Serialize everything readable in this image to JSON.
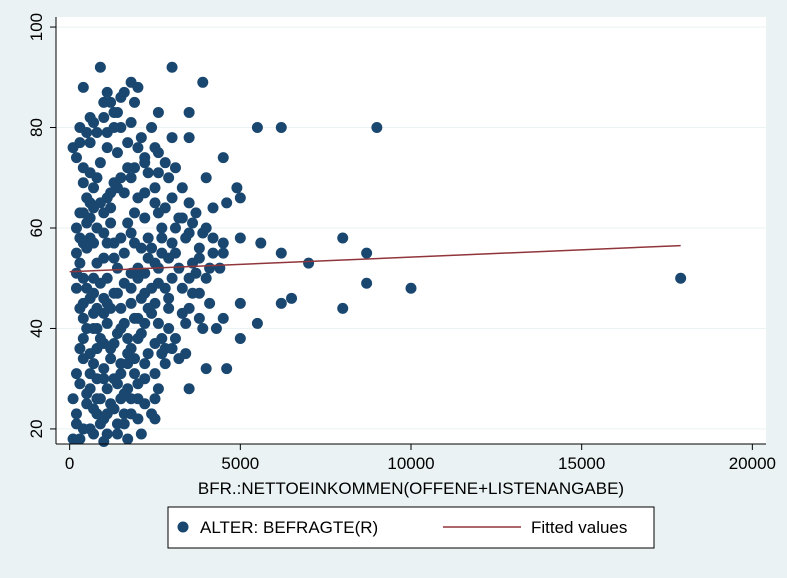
{
  "chart_data": {
    "type": "scatter",
    "xlabel": "BFR.:NETTOEINKOMMEN(OFFENE+LISTENANGABE)",
    "ylabel": "",
    "title": "",
    "xlim": [
      -400,
      20400
    ],
    "ylim": [
      17,
      102
    ],
    "x_ticks": [
      0,
      5000,
      10000,
      15000,
      20000
    ],
    "x_tick_labels": [
      "0",
      "5000",
      "10000",
      "15000",
      "20000"
    ],
    "y_ticks": [
      20,
      40,
      60,
      80,
      100
    ],
    "y_tick_labels": [
      "20",
      "40",
      "60",
      "80",
      "100"
    ],
    "grid": "horizontal",
    "legend_position": "bottom",
    "colors": {
      "background": "#eaf2f3",
      "plot_area": "#ffffff",
      "marker": "#1a476f",
      "fit_line": "#90353b",
      "grid": "#eaf2f3"
    },
    "series": [
      {
        "name": "ALTER: BEFRAGTE(R)",
        "kind": "scatter",
        "points": [
          [
            900,
            92
          ],
          [
            3000,
            92
          ],
          [
            1800,
            89
          ],
          [
            2000,
            88
          ],
          [
            1600,
            87
          ],
          [
            3900,
            89
          ],
          [
            400,
            88
          ],
          [
            1100,
            87
          ],
          [
            1200,
            85
          ],
          [
            600,
            82
          ],
          [
            1000,
            82
          ],
          [
            1300,
            83
          ],
          [
            3500,
            83
          ],
          [
            2600,
            83
          ],
          [
            5500,
            80
          ],
          [
            6200,
            80
          ],
          [
            9000,
            80
          ],
          [
            1500,
            80
          ],
          [
            300,
            80
          ],
          [
            800,
            79
          ],
          [
            3000,
            78
          ],
          [
            3500,
            78
          ],
          [
            1700,
            77
          ],
          [
            2500,
            76
          ],
          [
            100,
            76
          ],
          [
            2600,
            75
          ],
          [
            4500,
            74
          ],
          [
            2200,
            73
          ],
          [
            2800,
            73
          ],
          [
            3100,
            72
          ],
          [
            1900,
            72
          ],
          [
            600,
            71
          ],
          [
            4000,
            70
          ],
          [
            2900,
            70
          ],
          [
            400,
            69
          ],
          [
            3300,
            68
          ],
          [
            4900,
            68
          ],
          [
            1200,
            67
          ],
          [
            5000,
            66
          ],
          [
            3500,
            65
          ],
          [
            4600,
            65
          ],
          [
            4200,
            64
          ],
          [
            2800,
            64
          ],
          [
            2600,
            63
          ],
          [
            3300,
            62
          ],
          [
            600,
            62
          ],
          [
            4000,
            60
          ],
          [
            3500,
            59
          ],
          [
            5000,
            58
          ],
          [
            8000,
            58
          ],
          [
            3000,
            57
          ],
          [
            4500,
            57
          ],
          [
            5600,
            57
          ],
          [
            4500,
            55
          ],
          [
            6200,
            55
          ],
          [
            8700,
            55
          ],
          [
            3800,
            54
          ],
          [
            2500,
            53
          ],
          [
            7000,
            53
          ],
          [
            4100,
            52
          ],
          [
            3200,
            52
          ],
          [
            200,
            51
          ],
          [
            2200,
            51
          ],
          [
            3500,
            50
          ],
          [
            4000,
            50
          ],
          [
            17900,
            50
          ],
          [
            8700,
            49
          ],
          [
            2600,
            49
          ],
          [
            10000,
            48
          ],
          [
            3600,
            47
          ],
          [
            6500,
            46
          ],
          [
            4100,
            45
          ],
          [
            5000,
            45
          ],
          [
            6200,
            45
          ],
          [
            400,
            45
          ],
          [
            8000,
            44
          ],
          [
            3500,
            44
          ],
          [
            2400,
            43
          ],
          [
            4500,
            42
          ],
          [
            3800,
            42
          ],
          [
            5500,
            41
          ],
          [
            2200,
            41
          ],
          [
            3900,
            40
          ],
          [
            4300,
            40
          ],
          [
            2900,
            40
          ],
          [
            800,
            40
          ],
          [
            5000,
            38
          ],
          [
            2000,
            38
          ],
          [
            300,
            36
          ],
          [
            2800,
            36
          ],
          [
            1700,
            35
          ],
          [
            3200,
            34
          ],
          [
            1500,
            33
          ],
          [
            4000,
            32
          ],
          [
            4600,
            32
          ],
          [
            2500,
            31
          ],
          [
            1900,
            31
          ],
          [
            800,
            30
          ],
          [
            300,
            29
          ],
          [
            2600,
            28
          ],
          [
            3500,
            28
          ],
          [
            1600,
            27
          ],
          [
            2000,
            26
          ],
          [
            100,
            26
          ],
          [
            1200,
            25
          ],
          [
            700,
            24
          ],
          [
            2400,
            23
          ],
          [
            1800,
            23
          ],
          [
            1000,
            22
          ],
          [
            2500,
            22
          ],
          [
            200,
            21
          ],
          [
            1400,
            21
          ],
          [
            600,
            20
          ],
          [
            1100,
            19
          ],
          [
            300,
            18
          ],
          [
            1700,
            18
          ],
          [
            100,
            18
          ],
          [
            2100,
            19
          ],
          [
            900,
            21
          ],
          [
            1300,
            24
          ],
          [
            500,
            27
          ],
          [
            700,
            33
          ],
          [
            1000,
            37
          ],
          [
            1400,
            39
          ],
          [
            1900,
            42
          ],
          [
            500,
            48
          ],
          [
            1300,
            47
          ],
          [
            2100,
            46
          ],
          [
            800,
            53
          ],
          [
            1600,
            55
          ],
          [
            2400,
            56
          ],
          [
            1000,
            59
          ],
          [
            1700,
            61
          ],
          [
            500,
            56
          ],
          [
            1200,
            64
          ],
          [
            2000,
            66
          ],
          [
            700,
            68
          ],
          [
            1500,
            70
          ],
          [
            2300,
            71
          ],
          [
            900,
            73
          ],
          [
            1400,
            75
          ],
          [
            600,
            77
          ],
          [
            2100,
            78
          ],
          [
            1300,
            80
          ],
          [
            1800,
            81
          ],
          [
            2700,
            60
          ],
          [
            2900,
            54
          ],
          [
            1100,
            50
          ],
          [
            1800,
            48
          ],
          [
            2300,
            44
          ],
          [
            1600,
            41
          ],
          [
            700,
            43
          ],
          [
            1200,
            36
          ],
          [
            1900,
            34
          ],
          [
            2700,
            38
          ],
          [
            600,
            31
          ],
          [
            1400,
            29
          ],
          [
            2200,
            30
          ],
          [
            900,
            26
          ],
          [
            1600,
            23
          ],
          [
            2900,
            46
          ],
          [
            3300,
            48
          ],
          [
            3700,
            51
          ],
          [
            3100,
            55
          ],
          [
            2700,
            58
          ],
          [
            3200,
            62
          ],
          [
            3700,
            63
          ],
          [
            1300,
            57
          ],
          [
            500,
            61
          ],
          [
            900,
            65
          ],
          [
            1600,
            67
          ],
          [
            2500,
            68
          ],
          [
            400,
            72
          ],
          [
            1100,
            76
          ],
          [
            1900,
            85
          ],
          [
            1500,
            86
          ],
          [
            1100,
            79
          ],
          [
            800,
            70
          ],
          [
            500,
            66
          ],
          [
            300,
            58
          ],
          [
            700,
            57
          ],
          [
            1000,
            54
          ],
          [
            1400,
            52
          ],
          [
            1800,
            51
          ],
          [
            2600,
            52
          ],
          [
            3000,
            50
          ],
          [
            400,
            50
          ],
          [
            700,
            47
          ],
          [
            1100,
            45
          ],
          [
            1500,
            44
          ],
          [
            2000,
            42
          ],
          [
            2600,
            41
          ],
          [
            500,
            40
          ],
          [
            900,
            38
          ],
          [
            1300,
            37
          ],
          [
            1800,
            36
          ],
          [
            2300,
            35
          ],
          [
            2800,
            33
          ],
          [
            600,
            35
          ],
          [
            1000,
            32
          ],
          [
            1500,
            31
          ],
          [
            2000,
            29
          ],
          [
            500,
            25
          ],
          [
            1100,
            28
          ],
          [
            1700,
            28
          ],
          [
            800,
            23
          ],
          [
            1500,
            26
          ],
          [
            700,
            19
          ],
          [
            1200,
            61
          ],
          [
            1900,
            63
          ],
          [
            2300,
            58
          ],
          [
            800,
            60
          ],
          [
            1500,
            58
          ],
          [
            2100,
            56
          ],
          [
            1800,
            59
          ],
          [
            1000,
            63
          ],
          [
            600,
            65
          ],
          [
            1300,
            69
          ],
          [
            1700,
            72
          ],
          [
            2200,
            74
          ],
          [
            2500,
            65
          ],
          [
            3000,
            66
          ],
          [
            3400,
            58
          ],
          [
            3800,
            56
          ],
          [
            4200,
            55
          ],
          [
            3600,
            53
          ],
          [
            3300,
            43
          ],
          [
            2900,
            44
          ],
          [
            3100,
            38
          ],
          [
            2700,
            35
          ],
          [
            3400,
            41
          ],
          [
            900,
            49
          ],
          [
            1300,
            54
          ],
          [
            700,
            50
          ],
          [
            2000,
            52
          ],
          [
            2400,
            48
          ],
          [
            2800,
            48
          ],
          [
            600,
            46
          ],
          [
            1000,
            43
          ],
          [
            400,
            42
          ],
          [
            200,
            23
          ],
          [
            400,
            34
          ],
          [
            200,
            31
          ],
          [
            600,
            28
          ],
          [
            1700,
            38
          ],
          [
            2500,
            26
          ],
          [
            1000,
            17.5
          ],
          [
            2200,
            62
          ],
          [
            2000,
            76
          ],
          [
            2400,
            80
          ],
          [
            1000,
            85
          ],
          [
            1400,
            83
          ],
          [
            700,
            81
          ],
          [
            500,
            79
          ],
          [
            300,
            77
          ],
          [
            200,
            74
          ],
          [
            1800,
            70
          ],
          [
            2600,
            71
          ],
          [
            2200,
            67
          ],
          [
            400,
            63
          ],
          [
            700,
            64
          ],
          [
            1100,
            66
          ],
          [
            1400,
            68
          ],
          [
            1900,
            57
          ],
          [
            2300,
            54
          ],
          [
            2700,
            55
          ],
          [
            3100,
            60
          ],
          [
            3600,
            61
          ],
          [
            3900,
            59
          ],
          [
            4200,
            58
          ],
          [
            4400,
            52
          ],
          [
            3800,
            47
          ],
          [
            2500,
            45
          ],
          [
            1800,
            45
          ],
          [
            1200,
            44
          ],
          [
            800,
            44
          ],
          [
            1100,
            41
          ],
          [
            1500,
            40
          ],
          [
            2100,
            39
          ],
          [
            2500,
            37
          ],
          [
            3000,
            36
          ],
          [
            3400,
            35
          ],
          [
            2200,
            33
          ],
          [
            1700,
            33
          ],
          [
            1200,
            34
          ],
          [
            800,
            36
          ],
          [
            400,
            38
          ],
          [
            300,
            44
          ],
          [
            200,
            48
          ],
          [
            300,
            53
          ],
          [
            200,
            55
          ],
          [
            400,
            57
          ],
          [
            200,
            60
          ],
          [
            300,
            63
          ],
          [
            600,
            58
          ],
          [
            1100,
            57
          ],
          [
            1600,
            49
          ],
          [
            2000,
            50
          ],
          [
            2200,
            47
          ],
          [
            1400,
            47
          ],
          [
            1000,
            46
          ],
          [
            700,
            40
          ],
          [
            1000,
            30
          ],
          [
            1300,
            30
          ],
          [
            1800,
            26
          ],
          [
            2200,
            25
          ],
          [
            2000,
            22
          ],
          [
            1400,
            19
          ],
          [
            400,
            20
          ],
          [
            800,
            26
          ],
          [
            1100,
            23
          ],
          [
            1600,
            21
          ]
        ]
      },
      {
        "name": "Fitted values",
        "kind": "line",
        "points": [
          [
            0,
            51.3
          ],
          [
            17900,
            56.5
          ]
        ]
      }
    ],
    "legend": {
      "entries": [
        {
          "label": "ALTER: BEFRAGTE(R)",
          "symbol": "circle"
        },
        {
          "label": "Fitted values",
          "symbol": "line"
        }
      ]
    }
  }
}
